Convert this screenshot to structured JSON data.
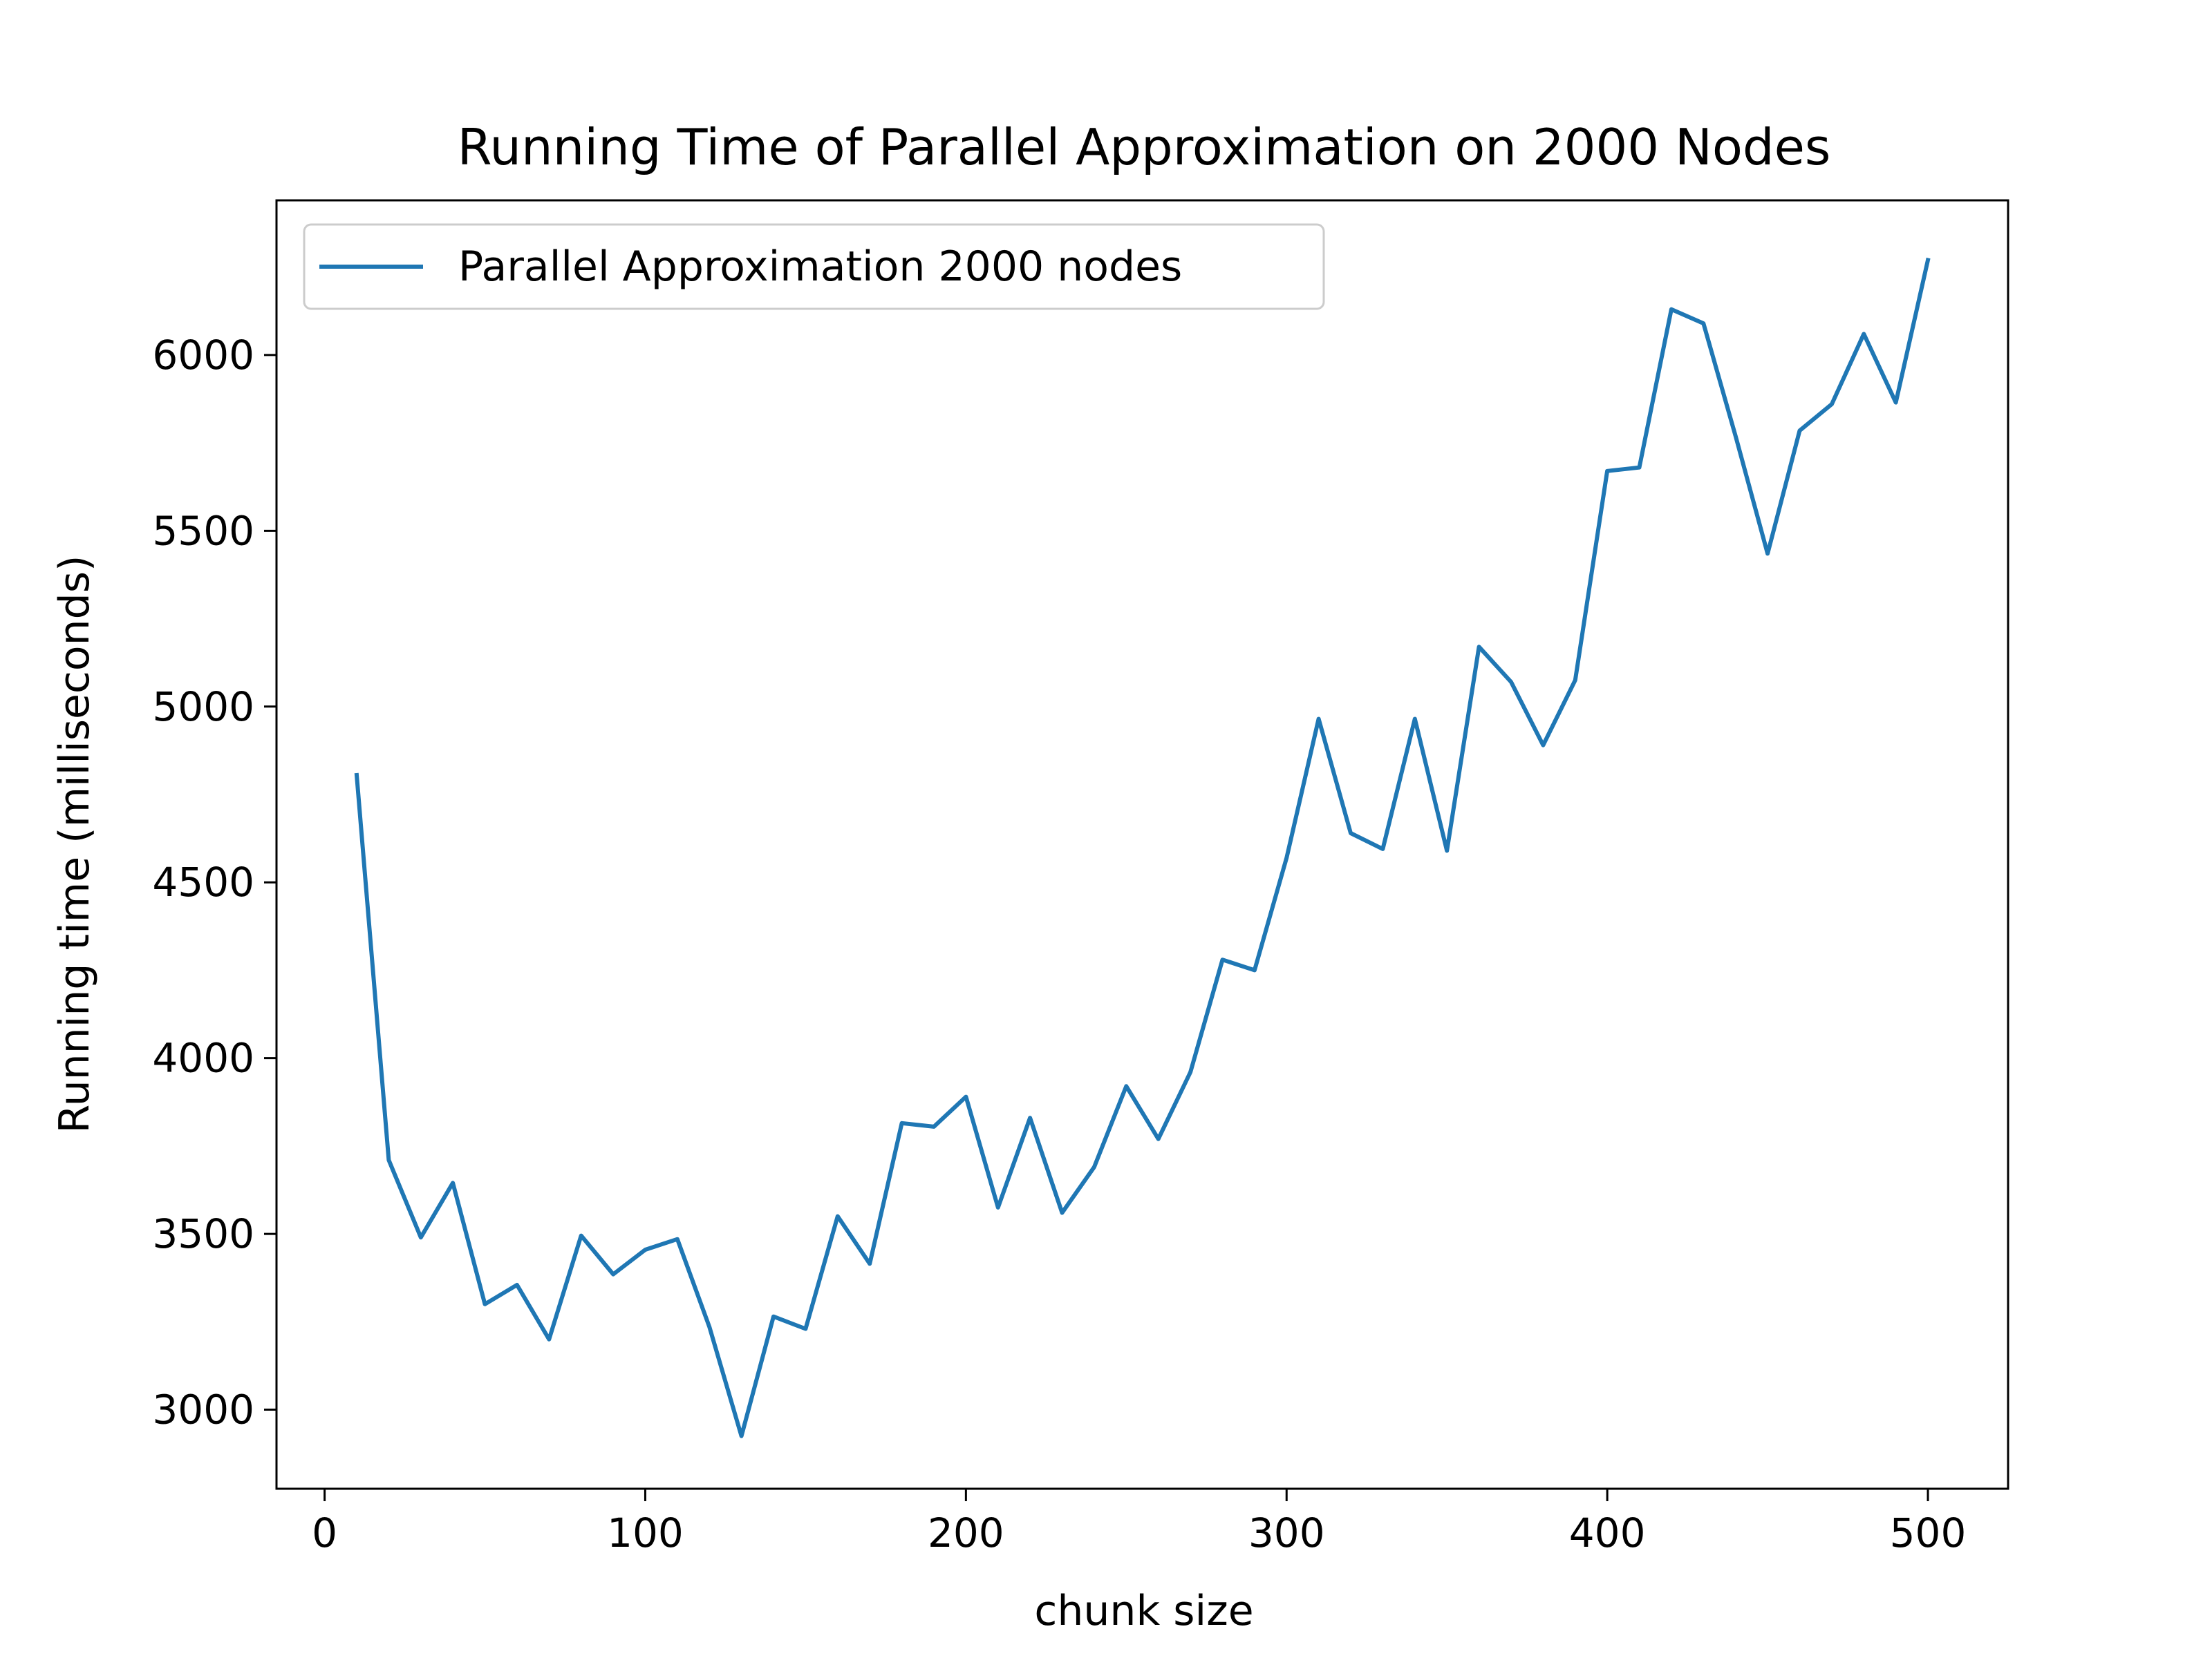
{
  "chart_data": {
    "type": "line",
    "title": "Running Time of Parallel Approximation on 2000 Nodes",
    "xlabel": "chunk size",
    "ylabel": "Running time (milliseconds)",
    "xlim": [
      -15,
      525
    ],
    "ylim": [
      2775,
      6440
    ],
    "xticks": [
      0,
      100,
      200,
      300,
      400,
      500
    ],
    "yticks": [
      3000,
      3500,
      4000,
      4500,
      5000,
      5500,
      6000
    ],
    "xtick_labels": [
      "0",
      "100",
      "200",
      "300",
      "400",
      "500"
    ],
    "ytick_labels": [
      "3000",
      "3500",
      "4000",
      "4500",
      "5000",
      "5500",
      "6000"
    ],
    "legend_position": "upper-left",
    "grid": false,
    "series": [
      {
        "name": "Parallel Approximation 2000 nodes",
        "color": "#1f77b4",
        "x": [
          10,
          20,
          30,
          40,
          50,
          60,
          70,
          80,
          90,
          100,
          110,
          120,
          130,
          140,
          150,
          160,
          170,
          180,
          190,
          200,
          210,
          220,
          230,
          240,
          250,
          260,
          270,
          280,
          290,
          300,
          310,
          320,
          330,
          340,
          350,
          360,
          370,
          380,
          390,
          400,
          410,
          420,
          430,
          440,
          450,
          460,
          470,
          480,
          490,
          500
        ],
        "values": [
          4805,
          3710,
          3490,
          3645,
          3300,
          3355,
          3200,
          3495,
          3385,
          3455,
          3485,
          3235,
          2925,
          3265,
          3230,
          3550,
          3415,
          3815,
          3805,
          3890,
          3575,
          3830,
          3560,
          3690,
          3920,
          3770,
          3960,
          4280,
          4250,
          4570,
          4965,
          4640,
          4595,
          4965,
          4590,
          5170,
          5070,
          4890,
          5075,
          5670,
          5680,
          6130,
          6090,
          5770,
          5435,
          5785,
          5860,
          6060,
          5865,
          6270
        ]
      }
    ]
  }
}
